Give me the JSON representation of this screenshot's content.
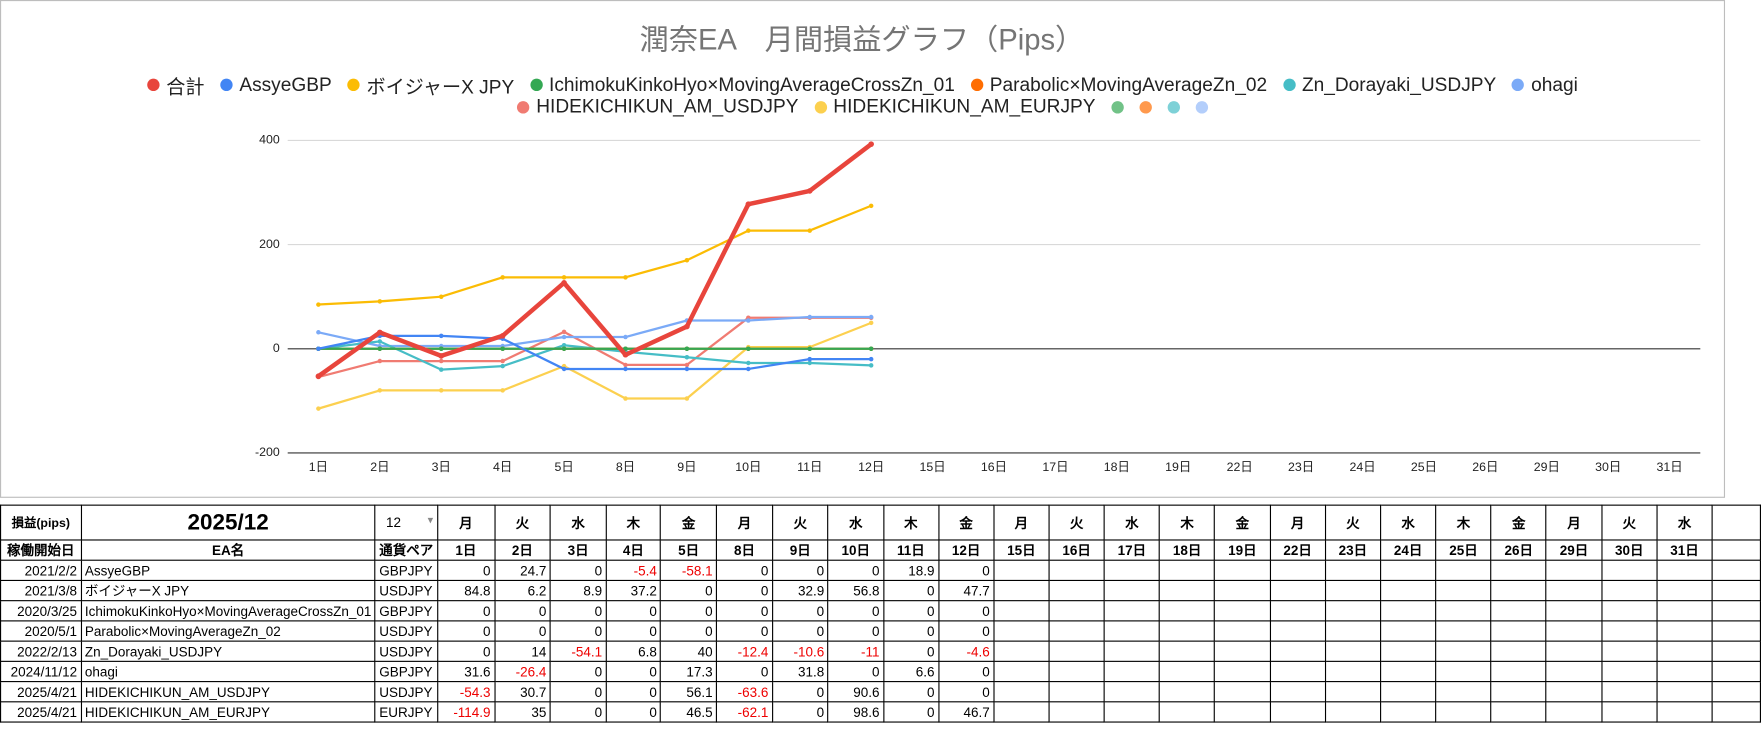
{
  "chart_data": {
    "type": "line",
    "title": "潤奈EA　月間損益グラフ（Pips）",
    "categories": [
      "1日",
      "2日",
      "3日",
      "4日",
      "5日",
      "8日",
      "9日",
      "10日",
      "11日",
      "12日",
      "15日",
      "16日",
      "17日",
      "18日",
      "19日",
      "22日",
      "23日",
      "24日",
      "25日",
      "26日",
      "29日",
      "30日",
      "31日"
    ],
    "series": [
      {
        "name": "合計",
        "color": "#e8453c",
        "values": [
          -52.8,
          31.4,
          -13.8,
          24.8,
          126.6,
          -11.5,
          42.6,
          277.6,
          303.1,
          392.9,
          null,
          null,
          null,
          null,
          null,
          null,
          null,
          null,
          null,
          null,
          null,
          null,
          null
        ]
      },
      {
        "name": "AssyeGBP",
        "color": "#4285f4",
        "values": [
          0,
          24.7,
          24.7,
          19.3,
          -38.8,
          -38.8,
          -38.8,
          -38.8,
          -19.9,
          -19.9,
          null,
          null,
          null,
          null,
          null,
          null,
          null,
          null,
          null,
          null,
          null,
          null,
          null
        ]
      },
      {
        "name": "ボイジャーX JPY",
        "color": "#fbbc04",
        "values": [
          84.8,
          91,
          99.9,
          137.1,
          137.1,
          137.1,
          170,
          226.8,
          226.8,
          274.5,
          null,
          null,
          null,
          null,
          null,
          null,
          null,
          null,
          null,
          null,
          null,
          null,
          null
        ]
      },
      {
        "name": "IchimokuKinkoHyo×MovingAverageCrossZn_01",
        "color": "#34a853",
        "values": [
          0,
          0,
          0,
          0,
          0,
          0,
          0,
          0,
          0,
          0,
          null,
          null,
          null,
          null,
          null,
          null,
          null,
          null,
          null,
          null,
          null,
          null,
          null
        ]
      },
      {
        "name": "Parabolic×MovingAverageZn_02",
        "color": "#ff6d01",
        "values": [
          0,
          0,
          0,
          0,
          0,
          0,
          0,
          0,
          0,
          0,
          null,
          null,
          null,
          null,
          null,
          null,
          null,
          null,
          null,
          null,
          null,
          null,
          null
        ]
      },
      {
        "name": "Zn_Dorayaki_USDJPY",
        "color": "#46bdc6",
        "values": [
          0,
          14,
          -40.1,
          -33.3,
          6.7,
          -5.7,
          -16.3,
          -27.3,
          -27.3,
          -31.9,
          null,
          null,
          null,
          null,
          null,
          null,
          null,
          null,
          null,
          null,
          null,
          null,
          null
        ]
      },
      {
        "name": "ohagi",
        "color": "#7baaf7",
        "values": [
          31.6,
          5.2,
          5.2,
          5.2,
          22.5,
          22.5,
          54.3,
          54.3,
          60.9,
          60.9,
          null,
          null,
          null,
          null,
          null,
          null,
          null,
          null,
          null,
          null,
          null,
          null,
          null
        ]
      },
      {
        "name": "HIDEKICHIKUN_AM_USDJPY",
        "color": "#f07b72",
        "values": [
          -54.3,
          -23.6,
          -23.6,
          -23.6,
          32.5,
          -31.1,
          -31.1,
          59.5,
          59.5,
          59.5,
          null,
          null,
          null,
          null,
          null,
          null,
          null,
          null,
          null,
          null,
          null,
          null,
          null
        ]
      },
      {
        "name": "HIDEKICHIKUN_AM_EURJPY",
        "color": "#fcd04f",
        "values": [
          -114.9,
          -79.9,
          -79.9,
          -79.9,
          -33.4,
          -95.5,
          -95.5,
          3.1,
          3.1,
          49.8,
          null,
          null,
          null,
          null,
          null,
          null,
          null,
          null,
          null,
          null,
          null,
          null,
          null
        ]
      }
    ],
    "ylim": [
      -200,
      400
    ],
    "yticks": [
      -200,
      0,
      200,
      400
    ],
    "grid": true,
    "legend": "top"
  },
  "table": {
    "header": [
      "損益(pips)",
      "2025/12",
      "12"
    ],
    "weekdays": [
      "月",
      "火",
      "水",
      "木",
      "金",
      "月",
      "火",
      "水",
      "木",
      "金",
      "月",
      "火",
      "水",
      "木",
      "金",
      "月",
      "火",
      "水",
      "木",
      "金",
      "月",
      "火",
      "水"
    ],
    "columns": [
      "稼働開始日",
      "EA名",
      "通貨ペア"
    ],
    "rows": [
      {
        "start": "2021/2/2",
        "name": "AssyeGBP",
        "pair": "GBPJPY",
        "values": [
          0,
          24.7,
          0,
          -5.4,
          -58.1,
          0,
          0,
          0,
          18.9,
          0
        ]
      },
      {
        "start": "2021/3/8",
        "name": "ボイジャーX JPY",
        "pair": "USDJPY",
        "values": [
          84.8,
          6.2,
          8.9,
          37.2,
          0,
          0,
          32.9,
          56.8,
          0,
          47.7
        ]
      },
      {
        "start": "2020/3/25",
        "name": "IchimokuKinkoHyo×MovingAverageCrossZn_01",
        "pair": "GBPJPY",
        "values": [
          0,
          0,
          0,
          0,
          0,
          0,
          0,
          0,
          0,
          0
        ]
      },
      {
        "start": "2020/5/1",
        "name": "Parabolic×MovingAverageZn_02",
        "pair": "USDJPY",
        "values": [
          0,
          0,
          0,
          0,
          0,
          0,
          0,
          0,
          0,
          0
        ]
      },
      {
        "start": "2022/2/13",
        "name": "Zn_Dorayaki_USDJPY",
        "pair": "USDJPY",
        "values": [
          0,
          14,
          -54.1,
          6.8,
          40,
          -12.4,
          -10.6,
          -11,
          0,
          -4.6
        ]
      },
      {
        "start": "2024/11/12",
        "name": "ohagi",
        "pair": "GBPJPY",
        "values": [
          31.6,
          -26.4,
          0,
          0,
          17.3,
          0,
          31.8,
          0,
          6.6,
          0
        ]
      },
      {
        "start": "2025/4/21",
        "name": "HIDEKICHIKUN_AM_USDJPY",
        "pair": "USDJPY",
        "values": [
          -54.3,
          30.7,
          0,
          0,
          56.1,
          -63.6,
          0,
          90.6,
          0,
          0
        ]
      },
      {
        "start": "2025/4/21",
        "name": "HIDEKICHIKUN_AM_EURJPY",
        "pair": "EURJPY",
        "values": [
          -114.9,
          35,
          0,
          0,
          46.5,
          -62.1,
          0,
          98.6,
          0,
          46.7
        ]
      }
    ]
  }
}
